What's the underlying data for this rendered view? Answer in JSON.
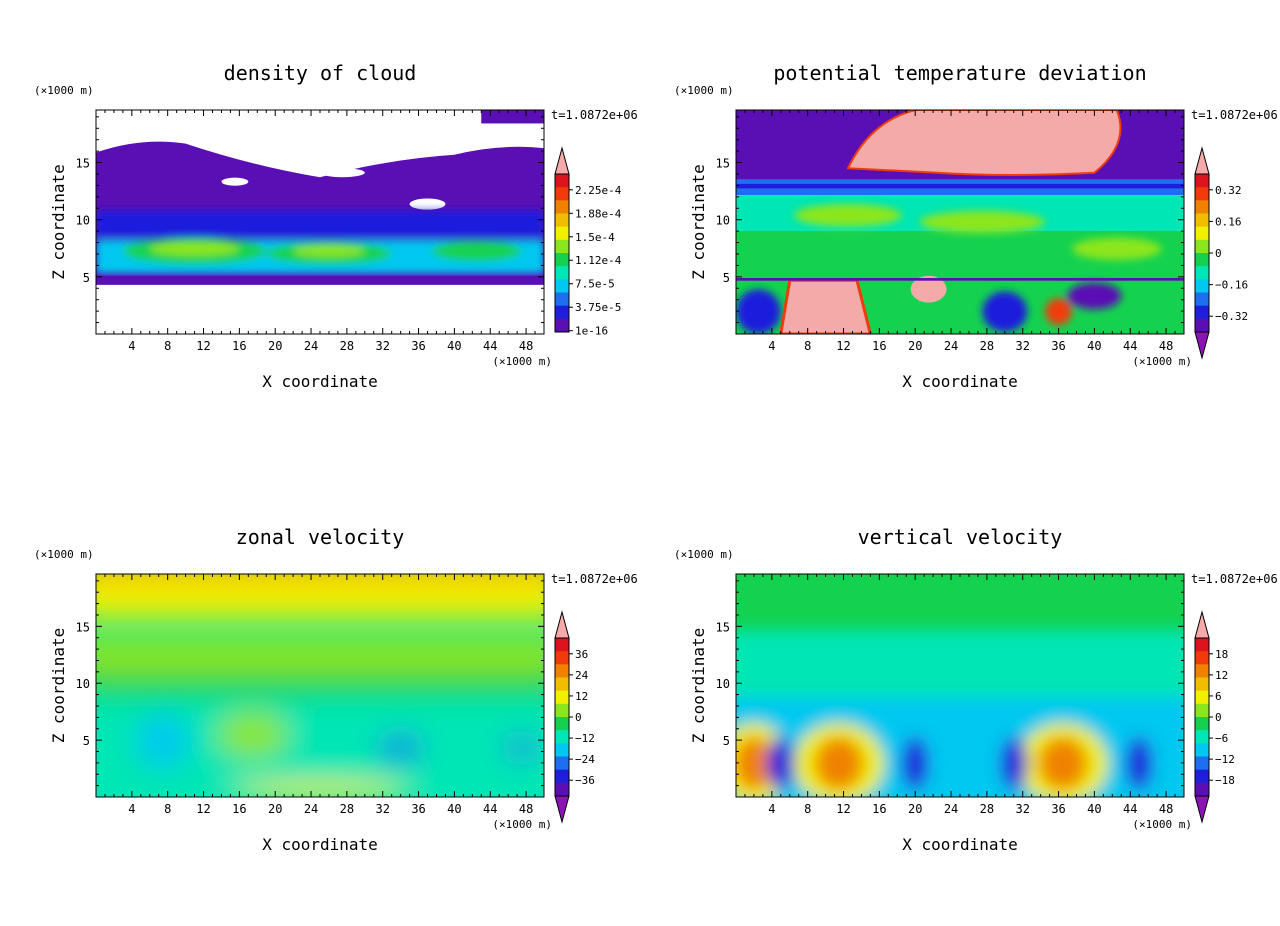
{
  "chart_data": [
    {
      "type": "heatmap",
      "id": "cloud",
      "title": "density of cloud",
      "xlabel": "X coordinate",
      "ylabel": "Z coordinate",
      "x_unit": "(×1000 m)",
      "y_unit": "(×1000 m)",
      "time_label": "t=1.0872e+06",
      "xlim": [
        0,
        50
      ],
      "ylim": [
        0,
        19.6
      ],
      "x_ticks": [
        4,
        8,
        12,
        16,
        20,
        24,
        28,
        32,
        36,
        40,
        44,
        48
      ],
      "y_ticks": [
        5,
        10,
        15
      ],
      "colorbar": {
        "labels": [
          "2.25e-4",
          "1.88e-4",
          "1.5e-4",
          "1.12e-4",
          "7.5e-5",
          "3.75e-5",
          "1e-16"
        ],
        "top_arrow": true,
        "bottom_arrow": false
      }
    },
    {
      "type": "heatmap",
      "id": "theta",
      "title": "potential temperature deviation",
      "xlabel": "X coordinate",
      "ylabel": "Z coordinate",
      "x_unit": "(×1000 m)",
      "y_unit": "(×1000 m)",
      "time_label": "t=1.0872e+06",
      "xlim": [
        0,
        50
      ],
      "ylim": [
        0,
        19.6
      ],
      "x_ticks": [
        4,
        8,
        12,
        16,
        20,
        24,
        28,
        32,
        36,
        40,
        44,
        48
      ],
      "y_ticks": [
        5,
        10,
        15
      ],
      "colorbar": {
        "labels": [
          "0.32",
          "0.16",
          "0",
          "−0.16",
          "−0.32"
        ],
        "top_arrow": true,
        "bottom_arrow": true
      }
    },
    {
      "type": "heatmap",
      "id": "zonal",
      "title": "zonal velocity",
      "xlabel": "X coordinate",
      "ylabel": "Z coordinate",
      "x_unit": "(×1000 m)",
      "y_unit": "(×1000 m)",
      "time_label": "t=1.0872e+06",
      "xlim": [
        0,
        50
      ],
      "ylim": [
        0,
        19.6
      ],
      "x_ticks": [
        4,
        8,
        12,
        16,
        20,
        24,
        28,
        32,
        36,
        40,
        44,
        48
      ],
      "y_ticks": [
        5,
        10,
        15
      ],
      "colorbar": {
        "labels": [
          "36",
          "24",
          "12",
          "0",
          "−12",
          "−24",
          "−36"
        ],
        "top_arrow": true,
        "bottom_arrow": true
      }
    },
    {
      "type": "heatmap",
      "id": "vertical",
      "title": "vertical velocity",
      "xlabel": "X coordinate",
      "ylabel": "Z coordinate",
      "x_unit": "(×1000 m)",
      "y_unit": "(×1000 m)",
      "time_label": "t=1.0872e+06",
      "xlim": [
        0,
        50
      ],
      "ylim": [
        0,
        19.6
      ],
      "x_ticks": [
        4,
        8,
        12,
        16,
        20,
        24,
        28,
        32,
        36,
        40,
        44,
        48
      ],
      "y_ticks": [
        5,
        10,
        15
      ],
      "colorbar": {
        "labels": [
          "18",
          "12",
          "6",
          "0",
          "−6",
          "−12",
          "−18"
        ],
        "top_arrow": true,
        "bottom_arrow": true
      }
    }
  ],
  "palette": [
    "#5a0fb4",
    "#1e1edc",
    "#1e6ef0",
    "#00c8f0",
    "#00e6b4",
    "#14d250",
    "#8ce61e",
    "#f0f000",
    "#f0be00",
    "#f08200",
    "#f03c0a",
    "#dc141e",
    "#f5aaaa"
  ],
  "arrow_low_color": "#8c14b4",
  "arrow_high_color": "#f5aaaa"
}
